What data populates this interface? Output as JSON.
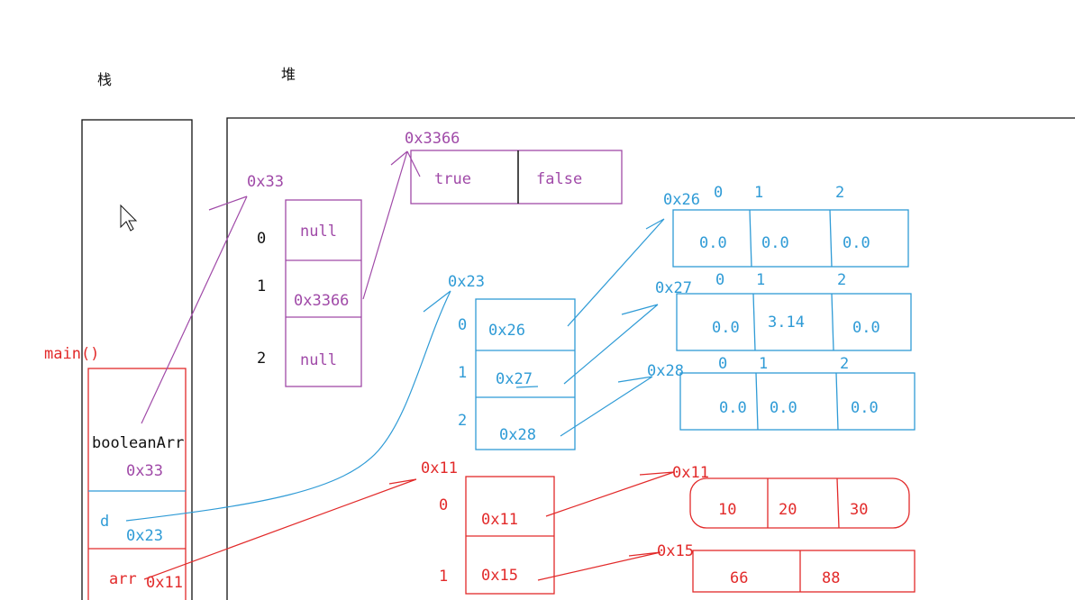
{
  "labels": {
    "stack": "栈",
    "heap": "堆",
    "main": "main()"
  },
  "frame": {
    "booleanArr": {
      "name": "booleanArr",
      "value": "0x33"
    },
    "d": {
      "name": "d",
      "value": "0x23"
    },
    "arr": {
      "name": "arr",
      "value": "0x11"
    }
  },
  "bool_outer": {
    "address": "0x33",
    "indices": [
      "0",
      "1",
      "2"
    ],
    "cells": [
      "null",
      "0x3366",
      "null"
    ]
  },
  "bool_inner": {
    "address": "0x3366",
    "cells": [
      "true",
      "false"
    ]
  },
  "d_outer": {
    "address": "0x23",
    "indices": [
      "0",
      "1",
      "2"
    ],
    "cells": [
      "0x26",
      "0x27",
      "0x28"
    ]
  },
  "d_inner": [
    {
      "address": "0x26",
      "indices": [
        "0",
        "1",
        "2"
      ],
      "cells": [
        "0.0",
        "0.0",
        "0.0"
      ]
    },
    {
      "address": "0x27",
      "indices": [
        "0",
        "1",
        "2"
      ],
      "cells": [
        "0.0",
        "3.14",
        "0.0"
      ]
    },
    {
      "address": "0x28",
      "indices": [
        "0",
        "1",
        "2"
      ],
      "cells": [
        "0.0",
        "0.0",
        "0.0"
      ]
    }
  ],
  "arr_outer": {
    "address": "0x11",
    "indices": [
      "0",
      "1"
    ],
    "cells": [
      "0x11",
      "0x15"
    ]
  },
  "arr_inner": [
    {
      "address": "0x11",
      "cells": [
        "10",
        "20",
        "30"
      ]
    },
    {
      "address": "0x15",
      "cells": [
        "66",
        "88"
      ]
    }
  ],
  "colors": {
    "purple": "#a04aa8",
    "blue": "#2f9bd6",
    "red": "#e22a2a",
    "black": "#111111"
  }
}
